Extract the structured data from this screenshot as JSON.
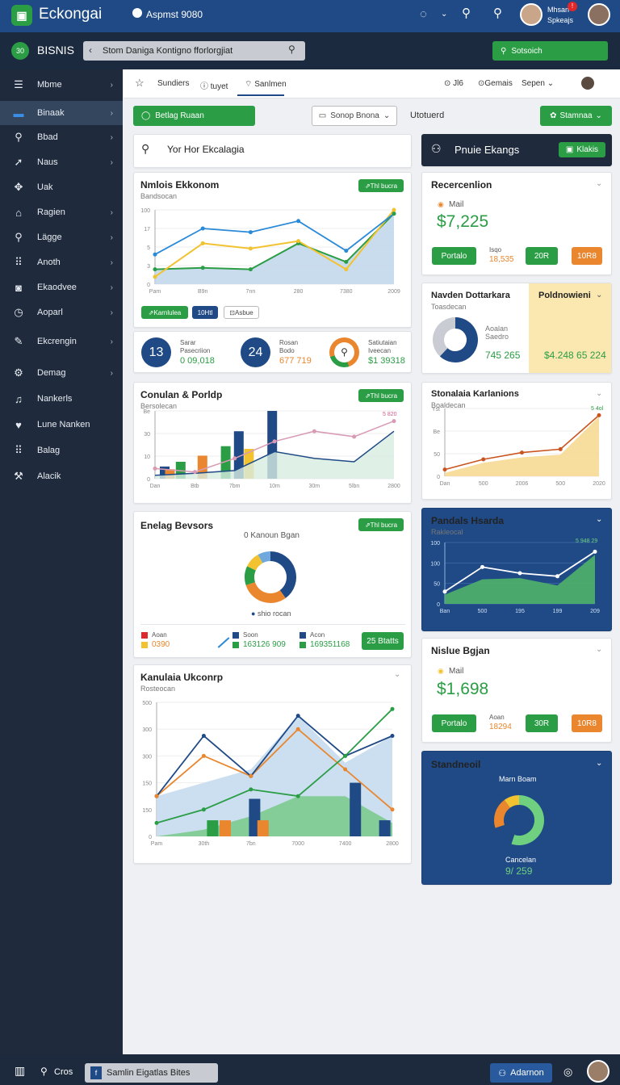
{
  "app": {
    "logo_text": "Eckongai",
    "top_label": "Aspmst 9080",
    "user_name": "Mhsan",
    "user_role": "Spkeajs",
    "notif_badge": "!"
  },
  "subbar": {
    "brand": "BISNIS",
    "brand_icon": "30",
    "search_value": "Stom Daniga Kontigno fforlorgjiat",
    "green_button": "Sotsoich"
  },
  "sidebar": {
    "items": [
      {
        "label": "Mbme",
        "icon": "menu-icon",
        "chev": true
      },
      {
        "label": "Binaak",
        "icon": "folder-icon",
        "chev": true,
        "active": true
      },
      {
        "label": "Bbad",
        "icon": "search-icon",
        "chev": true
      },
      {
        "label": "Naus",
        "icon": "arrow-icon",
        "chev": true
      },
      {
        "label": "Uak",
        "icon": "move-icon",
        "chev": false
      },
      {
        "label": "Ragien",
        "icon": "home-icon",
        "chev": true
      },
      {
        "label": "Lägge",
        "icon": "search-icon",
        "chev": true
      },
      {
        "label": "Anoth",
        "icon": "grid-icon",
        "chev": true
      },
      {
        "label": "Ekaodvee",
        "icon": "camera-icon",
        "chev": true
      },
      {
        "label": "Aoparl",
        "icon": "clock-icon",
        "chev": true
      },
      {
        "label": "Ekcrengin",
        "icon": "pen-icon",
        "chev": true
      },
      {
        "label": "Demag",
        "icon": "gear-icon",
        "chev": true
      },
      {
        "label": "Nankerls",
        "icon": "doc-icon",
        "chev": false
      },
      {
        "label": "Lune Nanken",
        "icon": "heart-icon",
        "chev": false
      },
      {
        "label": "Balag",
        "icon": "grid-icon",
        "chev": false
      },
      {
        "label": "Alacik",
        "icon": "tools-icon",
        "chev": false
      }
    ]
  },
  "tabs": {
    "items": [
      "Sundiers",
      "tuyet",
      "Sanlmen"
    ],
    "right": [
      "Jl6",
      "Gemais",
      "Sepen"
    ]
  },
  "toolbar": {
    "green_btn": "Betlag Ruaan",
    "select_value": "Sonop Bnona",
    "label": "Utotuerd",
    "right_btn": "Stamnaa"
  },
  "search_card": {
    "text": "Yor Hor Ekcalagia"
  },
  "header_card": {
    "title": "Pnuie Ekangs",
    "button": "Klakis"
  },
  "chart1": {
    "title": "Nmlois Ekkonom",
    "sub": "Bandsocan",
    "badge": "Thl bucra",
    "btn1": "Karnlulea",
    "btn2": "10Htl",
    "btn3": "Asbue"
  },
  "stats": [
    {
      "num": "13",
      "l1": "Sarar",
      "l2": "Pasecriion",
      "val": "0 09,018",
      "color": "#2a9d45"
    },
    {
      "num": "24",
      "l1": "Rosan",
      "l2": "Bodo",
      "val": "677 719",
      "color": "#e9862e"
    },
    {
      "num": "",
      "l1": "Satiutaian",
      "l2": "Iveecan",
      "val": "$1 39318",
      "color": "#2a9d45"
    }
  ],
  "recent1": {
    "title": "Recercenlion",
    "label": "Mail",
    "value": "$7,225",
    "btn1": "Portalo",
    "mid_top": "Isqo",
    "mid_val": "18,535",
    "btn2": "20R",
    "btn3": "10R8"
  },
  "dist": {
    "title": "Navden Dottarkara",
    "sub": "Toasdecan",
    "l1": "Aoalan",
    "l2": "Saedro",
    "val": "745 265",
    "right_title": "Poldnowieni",
    "right_val": "$4.248 65 224"
  },
  "chart2": {
    "title": "Conulan & Porldp",
    "sub": "Bersolecan",
    "badge": "Thl bucra",
    "note": "5 820"
  },
  "chart3": {
    "title": "Stonalaia Karlanions",
    "sub": "Boaldecan",
    "note": "5 4ol"
  },
  "donut": {
    "title": "Enelag Bevsors",
    "top": "0 Kanoun Bgan",
    "mid": "shio rocan",
    "badge": "Thl bucra",
    "legend": [
      {
        "label": "Aoan",
        "val": "0390",
        "color": "#e9862e"
      },
      {
        "label": "Soon",
        "val": "163126 909",
        "color": "#2a9d45"
      },
      {
        "label": "Acon",
        "val": "169351168",
        "color": "#2a9d45"
      }
    ],
    "btn": "25 Btatts"
  },
  "chart4": {
    "title": "Pandals Hsarda",
    "sub": "Rakleocal",
    "note": "5 948 29"
  },
  "recent2": {
    "title": "Nislue Bgjan",
    "label": "Mail",
    "value": "$1,698",
    "btn1": "Portalo",
    "mid_top": "Aoan",
    "mid_val": "18294",
    "btn2": "30R",
    "btn3": "10R8"
  },
  "chart5": {
    "title": "Kanulaia Ukconrp",
    "sub": "Rosteocan"
  },
  "standard": {
    "title": "Standneoil",
    "top": "Marn Boam",
    "label": "Cancelan",
    "value": "9/ 259"
  },
  "bottom": {
    "left_label": "Cros",
    "chip": "Samlin Eigatlas Bites",
    "btn": "Adarnon"
  },
  "colors": {
    "brand": "#1f4a86",
    "green": "#2a9d45",
    "orange": "#e9862e",
    "yellow": "#f2c230",
    "dark": "#1f2b3d"
  },
  "chart_data": [
    {
      "type": "line",
      "title": "Nmlois Ekkonom",
      "x": [
        "Pam",
        "B9n",
        "7nn",
        "280",
        "7380",
        "2009"
      ],
      "yticks": [
        "100",
        "17",
        "5",
        "3",
        "0"
      ],
      "series": [
        {
          "values": [
            40,
            75,
            70,
            85,
            45,
            95
          ]
        },
        {
          "values": [
            20,
            22,
            20,
            55,
            30,
            95
          ]
        }
      ]
    },
    {
      "type": "bar",
      "title": "Conulan & Porldp",
      "x": [
        "Dan",
        "Btb",
        "7bm",
        "10m",
        "30m",
        "5lbn",
        "2800"
      ],
      "yticks": [
        "Be",
        "30",
        "10",
        "0"
      ],
      "series": [
        {
          "values": [
            18,
            25,
            30,
            60,
            90,
            40,
            55
          ]
        }
      ]
    },
    {
      "type": "area",
      "title": "Stonalaia Karlanions",
      "x": [
        "Dan",
        "500",
        "2006",
        "500",
        "2020"
      ],
      "yticks": [
        "Yst",
        "Be",
        "50",
        "0"
      ],
      "series": [
        {
          "values": [
            10,
            25,
            35,
            40,
            90
          ]
        }
      ]
    },
    {
      "type": "line",
      "title": "Pandals Hsarda",
      "x": [
        "Ban",
        "500",
        "195",
        "199",
        "209"
      ],
      "yticks": [
        "100",
        "100",
        "50",
        "0"
      ],
      "series": [
        {
          "values": [
            20,
            60,
            50,
            45,
            85
          ]
        }
      ]
    },
    {
      "type": "area",
      "title": "Kanulaia Ukconrp",
      "x": [
        "Pam",
        "30th",
        "7bn",
        "7000",
        "7400",
        "2800"
      ],
      "yticks": [
        "500",
        "300",
        "300",
        "150",
        "150",
        "0"
      ],
      "series": [
        {
          "values": [
            30,
            75,
            45,
            90,
            60,
            75
          ]
        },
        {
          "values": [
            10,
            20,
            35,
            30,
            60,
            95
          ]
        }
      ]
    }
  ]
}
